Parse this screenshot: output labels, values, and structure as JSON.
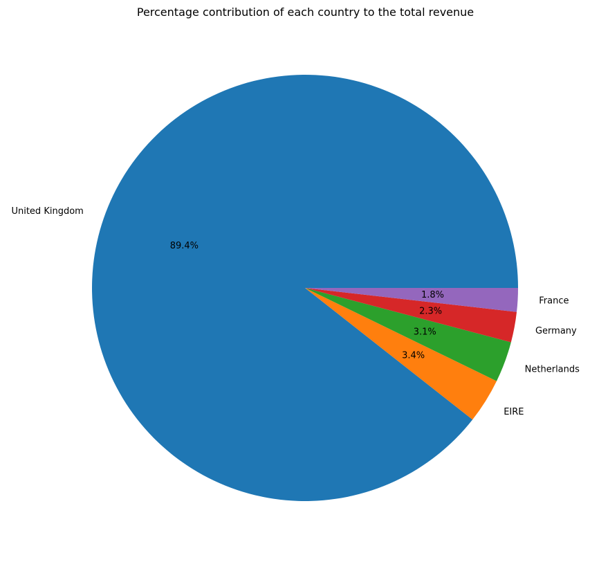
{
  "chart_data": {
    "type": "pie",
    "title": "Percentage contribution of each country to the total revenue",
    "start_angle_deg": 0,
    "direction": "counterclockwise",
    "slices": [
      {
        "label": "United Kingdom",
        "value": 89.4,
        "pct_label": "89.4%",
        "color": "#1f77b4"
      },
      {
        "label": "EIRE",
        "value": 3.4,
        "pct_label": "3.4%",
        "color": "#ff7f0e"
      },
      {
        "label": "Netherlands",
        "value": 3.1,
        "pct_label": "3.1%",
        "color": "#2ca02c"
      },
      {
        "label": "Germany",
        "value": 2.3,
        "pct_label": "2.3%",
        "color": "#d62728"
      },
      {
        "label": "France",
        "value": 1.8,
        "pct_label": "1.8%",
        "color": "#9467bd"
      }
    ]
  }
}
